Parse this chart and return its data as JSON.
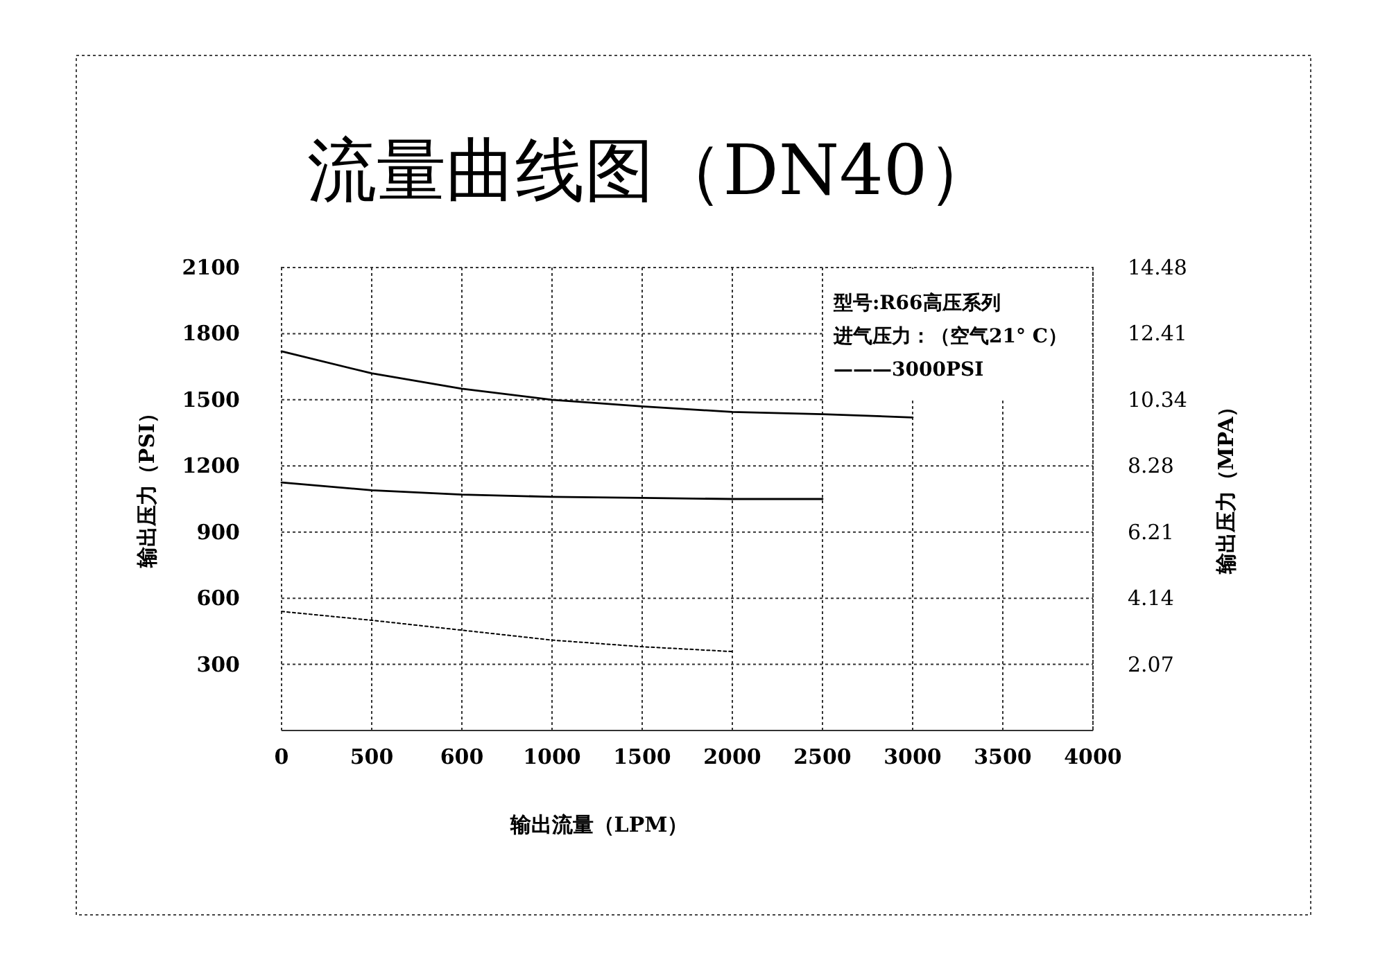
{
  "chart_data": {
    "type": "line",
    "title": "流量曲线图（DN40）",
    "xlabel": "输出流量（LPM）",
    "ylabel": "输出压力（PSI）",
    "y2label": "输出压力（MPA）",
    "annotations": [
      "型号:R66高压系列",
      "进气压力：（空气21° C）",
      "———3000PSI"
    ],
    "categories": [
      "0",
      "500",
      "600",
      "1000",
      "1500",
      "2000",
      "2500",
      "3000",
      "3500",
      "4000"
    ],
    "ylim": [
      0,
      2100
    ],
    "yticks": [
      300,
      600,
      900,
      1200,
      1500,
      1800,
      2100
    ],
    "y2lim": [
      0,
      14.48
    ],
    "y2ticks": [
      2.07,
      4.14,
      6.21,
      8.28,
      10.34,
      12.41,
      14.48
    ],
    "grid": true,
    "series": [
      {
        "color": "#000000",
        "line_style": "solid",
        "values": [
          1720,
          1620,
          1550,
          1500,
          1470,
          1445,
          1435,
          1420,
          null,
          null
        ]
      },
      {
        "color": "#000000",
        "line_style": "solid",
        "values": [
          1125,
          1090,
          1070,
          1060,
          1055,
          1050,
          1050,
          null,
          null,
          null
        ]
      },
      {
        "color": "#000000",
        "line_style": "dotted",
        "values": [
          540,
          500,
          455,
          410,
          380,
          358,
          null,
          null,
          null,
          null
        ]
      }
    ]
  }
}
